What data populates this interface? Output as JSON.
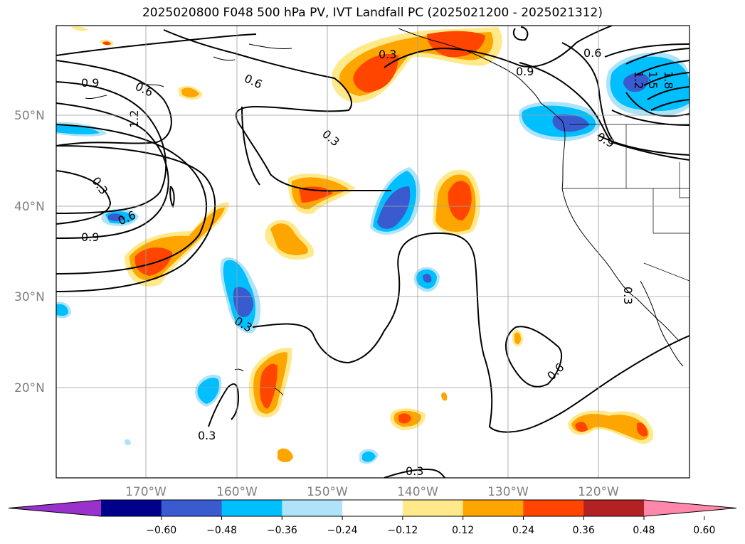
{
  "title": "2025020800 F048 500 hPa PV, IVT Landfall PC (2025021200 - 2025021312)",
  "map": {
    "lat_labels": [
      "50°N",
      "40°N",
      "30°N",
      "20°N"
    ],
    "lon_labels": [
      "170°W",
      "160°W",
      "150°W",
      "140°W",
      "130°W",
      "120°W"
    ],
    "grid": true,
    "contour_labels": [
      "0.3",
      "0.6",
      "0.9",
      "1.2",
      "1.5",
      "1.8"
    ],
    "contour_color": "#000000"
  },
  "colorbar": {
    "ticks": [
      "−0.60",
      "−0.48",
      "−0.36",
      "−0.24",
      "−0.12",
      "0.12",
      "0.24",
      "0.36",
      "0.48",
      "0.60"
    ],
    "colors": [
      "#9932cc",
      "#00008b",
      "#3a5bcf",
      "#00bfff",
      "#aee3fa",
      "#ffffff",
      "#ffe98a",
      "#ffa500",
      "#ff4500",
      "#b22222",
      "#ff88aa"
    ]
  },
  "shading_colors": {
    "pos_light": "#ffe98a",
    "pos_mid": "#ffa500",
    "pos_strong": "#ff4500",
    "neg_light": "#aee3fa",
    "neg_mid": "#00bfff",
    "neg_strong": "#3a5bcf"
  }
}
